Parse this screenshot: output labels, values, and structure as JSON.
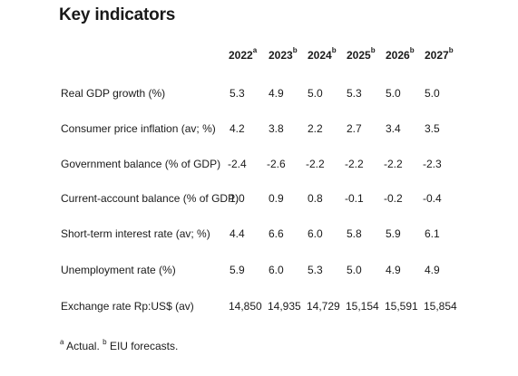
{
  "title": "Key indicators",
  "columns": [
    {
      "year": "2022",
      "mark": "a"
    },
    {
      "year": "2023",
      "mark": "b"
    },
    {
      "year": "2024",
      "mark": "b"
    },
    {
      "year": "2025",
      "mark": "b"
    },
    {
      "year": "2026",
      "mark": "b"
    },
    {
      "year": "2027",
      "mark": "b"
    }
  ],
  "rows": [
    {
      "label": "Real GDP growth (%)",
      "values": [
        "5.3",
        "4.9",
        "5.0",
        "5.3",
        "5.0",
        "5.0"
      ]
    },
    {
      "label": "Consumer price inflation (av; %)",
      "values": [
        "4.2",
        "3.8",
        "2.2",
        "2.7",
        "3.4",
        "3.5"
      ]
    },
    {
      "label": "Government balance (% of GDP)",
      "values": [
        "-2.4",
        "-2.6",
        "-2.2",
        "-2.2",
        "-2.2",
        "-2.3"
      ]
    },
    {
      "label": "Current-account balance (% of GDP)",
      "values": [
        "1.0",
        "0.9",
        "0.8",
        "-0.1",
        "-0.2",
        "-0.4"
      ]
    },
    {
      "label": "Short-term interest rate (av; %)",
      "values": [
        "4.4",
        "6.6",
        "6.0",
        "5.8",
        "5.9",
        "6.1"
      ]
    },
    {
      "label": "Unemployment rate (%)",
      "values": [
        "5.9",
        "6.0",
        "5.3",
        "5.0",
        "4.9",
        "4.9"
      ]
    },
    {
      "label": "Exchange rate Rp:US$ (av)",
      "values": [
        "14,850",
        "14,935",
        "14,729",
        "15,154",
        "15,591",
        "15,854"
      ]
    }
  ],
  "footnote": {
    "mark_a": "a",
    "text_a": " Actual. ",
    "mark_b": "b",
    "text_b": " EIU forecasts."
  }
}
